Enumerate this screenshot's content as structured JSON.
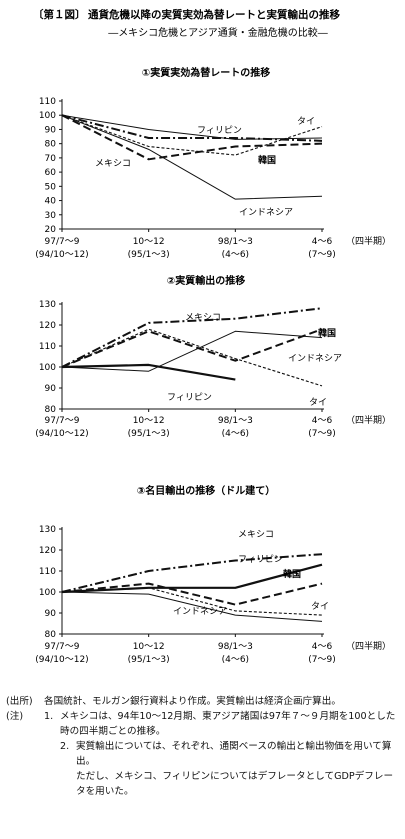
{
  "figure": {
    "label": "〔第１図〕",
    "title": "通貨危機以降の実質実効為替レートと実質輸出の推移",
    "subtitle": "―メキシコ危機とアジア通貨・金融危機の比較―"
  },
  "chart_data": [
    {
      "type": "line",
      "title": "①実質実効為替レートの推移",
      "categories": [
        "97/7〜9\n(94/10〜12)",
        "10〜12\n(95/1〜3)",
        "98/1〜3\n(4〜6)",
        "4〜6\n(7〜9)"
      ],
      "unit_label": "（四半期）",
      "ylim": [
        20,
        110
      ],
      "yticks": [
        20,
        30,
        40,
        50,
        60,
        70,
        80,
        90,
        100,
        110
      ],
      "series": [
        {
          "name": "タイ",
          "style": "short-dash",
          "values": [
            100,
            78,
            72,
            92
          ]
        },
        {
          "name": "フィリピン",
          "style": "thin-solid",
          "values": [
            100,
            90,
            83,
            84
          ]
        },
        {
          "name": "メキシコ",
          "style": "dash-dot",
          "values": [
            100,
            84,
            84,
            82
          ]
        },
        {
          "name": "韓国",
          "style": "long-dash",
          "values": [
            100,
            69,
            78,
            80
          ]
        },
        {
          "name": "インドネシア",
          "style": "thin-solid",
          "values": [
            100,
            76,
            41,
            43
          ]
        }
      ]
    },
    {
      "type": "line",
      "title": "②実質輸出の推移",
      "categories": [
        "97/7〜9\n(94/10〜12)",
        "10〜12\n(95/1〜3)",
        "98/1〜3\n(4〜6)",
        "4〜6\n(7〜9)"
      ],
      "unit_label": "（四半期）",
      "ylim": [
        80,
        130
      ],
      "yticks": [
        80,
        90,
        100,
        110,
        120,
        130
      ],
      "series": [
        {
          "name": "メキシコ",
          "style": "dash-dot",
          "values": [
            100,
            121,
            123,
            128
          ]
        },
        {
          "name": "韓国",
          "style": "long-dash",
          "values": [
            100,
            117,
            103,
            118
          ]
        },
        {
          "name": "インドネシア",
          "style": "thin-solid",
          "values": [
            100,
            98,
            117,
            114
          ]
        },
        {
          "name": "タイ",
          "style": "short-dash",
          "values": [
            100,
            118,
            104,
            91
          ]
        },
        {
          "name": "フィリピン",
          "style": "thick-solid",
          "values": [
            100,
            101,
            94,
            null
          ]
        }
      ]
    },
    {
      "type": "line",
      "title": "③名目輸出の推移（ドル建て）",
      "categories": [
        "97/7〜9\n(94/10〜12)",
        "10〜12\n(95/1〜3)",
        "98/1〜3\n(4〜6)",
        "4〜6\n(7〜9)"
      ],
      "unit_label": "（四半期）",
      "ylim": [
        80,
        130
      ],
      "yticks": [
        80,
        90,
        100,
        110,
        120,
        130
      ],
      "series": [
        {
          "name": "メキシコ",
          "style": "dash-dot",
          "values": [
            100,
            110,
            115,
            118
          ]
        },
        {
          "name": "フィリピン",
          "style": "thick-solid",
          "values": [
            100,
            102,
            102,
            113
          ]
        },
        {
          "name": "韓国",
          "style": "long-dash",
          "values": [
            100,
            104,
            94,
            104
          ]
        },
        {
          "name": "タイ",
          "style": "short-dash",
          "values": [
            100,
            102,
            91,
            89
          ]
        },
        {
          "name": "インドネシア",
          "style": "thin-solid",
          "values": [
            100,
            99,
            89,
            86
          ]
        }
      ]
    }
  ],
  "notes": {
    "source_key": "(出所)",
    "source_text": "各国統計、モルガン銀行資料より作成。実質輸出は経済企画庁算出。",
    "notes_key": "(注)",
    "note1_num": "1.",
    "note1_text": "メキシコは、94年10〜12月期、東アジア諸国は97年７〜９月期を100とした時の四半期ごとの推移。",
    "note2_num": "2.",
    "note2_text": "実質輸出については、それぞれ、通関ベースの輸出と輸出物価を用いて算出。",
    "note2_cont": "ただし、メキシコ、フィリピンについてはデフレータとしてGDPデフレータを用いた。"
  }
}
